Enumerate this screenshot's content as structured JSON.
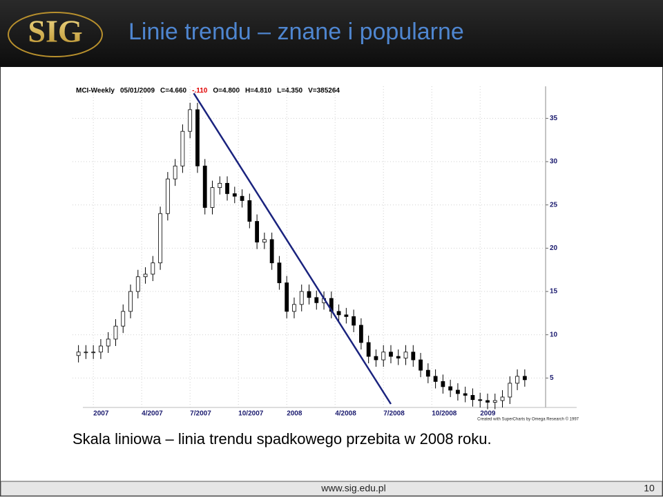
{
  "header": {
    "logo": "SIG",
    "title": "Linie trendu – znane i popularne"
  },
  "chart_data": {
    "type": "candlestick",
    "info": [
      {
        "text": "MCI-Weekly",
        "color": "#000000"
      },
      {
        "text": "05/01/2009",
        "color": "#000000"
      },
      {
        "text": "C=4.660",
        "color": "#000000"
      },
      {
        "text": "-.110",
        "color": "#e00000"
      },
      {
        "text": "O=4.800",
        "color": "#000000"
      },
      {
        "text": "H=4.810",
        "color": "#000000"
      },
      {
        "text": "L=4.350",
        "color": "#000000"
      },
      {
        "text": "V=385264",
        "color": "#000000"
      }
    ],
    "x": [
      -4,
      -2,
      0,
      2,
      4,
      6,
      8,
      10,
      12,
      14,
      16,
      18,
      20,
      22,
      24,
      26,
      28,
      30,
      32,
      34,
      36,
      38,
      40,
      42,
      44,
      46,
      48,
      50,
      52,
      54,
      56,
      58,
      60,
      62,
      64,
      66,
      68,
      70,
      72,
      74,
      76,
      78,
      80,
      82,
      84,
      86,
      88,
      90,
      92,
      94,
      96,
      98,
      100,
      102,
      104,
      106,
      108,
      110,
      112,
      114,
      116
    ],
    "open": [
      7.6,
      8,
      8,
      8,
      8.7,
      9.5,
      11,
      12.7,
      15,
      16.7,
      17,
      18.3,
      24,
      28,
      29.5,
      33.5,
      36,
      29.5,
      24.7,
      27,
      27.5,
      26.3,
      26,
      25.5,
      23.1,
      20.7,
      21,
      18.3,
      16,
      12.7,
      13.5,
      15,
      14.3,
      13.7,
      14.2,
      12.7,
      12.3,
      12.1,
      11.1,
      9.1,
      7.5,
      7.1,
      8,
      7.5,
      7.3,
      8,
      7.1,
      5.9,
      5.2,
      4.6,
      4.0,
      3.6,
      3.2,
      3.0,
      2.5,
      2.4,
      2.2,
      2.4,
      2.8,
      4.4,
      5.2
    ],
    "high": [
      8.8,
      8.8,
      8.8,
      9.5,
      10.3,
      11.8,
      13.5,
      15.8,
      17.5,
      17.8,
      19.1,
      24.8,
      28.8,
      30.3,
      34.3,
      36.8,
      36.8,
      30.3,
      27.8,
      28.3,
      28.3,
      27.1,
      26.8,
      26.3,
      23.9,
      21.8,
      21.8,
      19.1,
      16.8,
      14.3,
      15.8,
      15.8,
      15.1,
      15,
      15,
      13.5,
      13.1,
      12.9,
      11.9,
      9.9,
      8.3,
      8.8,
      8.8,
      8.3,
      8.8,
      8.8,
      7.9,
      6.7,
      6,
      5.4,
      4.8,
      4.4,
      4,
      3.8,
      3.3,
      3.2,
      3.2,
      3.6,
      5.2,
      6,
      6
    ],
    "low": [
      6.8,
      7.2,
      7.2,
      7.2,
      7.9,
      8.7,
      10.2,
      11.9,
      14.2,
      15.9,
      16.2,
      17.5,
      23.2,
      27.2,
      28.7,
      32.7,
      28.7,
      23.9,
      23.9,
      26.2,
      25.5,
      25.2,
      24.7,
      22.3,
      19.9,
      19.9,
      17.5,
      15.2,
      11.9,
      11.9,
      12.7,
      13.5,
      12.9,
      12.9,
      11.9,
      11.5,
      11.3,
      10.3,
      8.3,
      6.7,
      6.3,
      6.3,
      6.7,
      6.5,
      6.5,
      6.3,
      5.1,
      4.4,
      3.8,
      3.2,
      2.8,
      2.4,
      2.2,
      1.7,
      1.6,
      1.4,
      1.4,
      1.6,
      2,
      3.6,
      4
    ],
    "close": [
      8,
      8,
      8,
      8.7,
      9.5,
      11,
      12.7,
      15,
      16.7,
      17,
      18.3,
      24,
      28,
      29.5,
      33.5,
      36,
      29.5,
      24.7,
      27,
      27.5,
      26.3,
      26,
      25.5,
      23.1,
      20.7,
      21,
      18.3,
      16,
      12.7,
      13.5,
      15,
      14.3,
      13.7,
      14.2,
      12.7,
      12.3,
      12.1,
      11.1,
      9.1,
      7.5,
      7.1,
      8,
      7.5,
      7.3,
      8,
      7.1,
      5.9,
      5.2,
      4.6,
      4.0,
      3.6,
      3.2,
      3.0,
      2.5,
      2.4,
      2.2,
      2.4,
      2.8,
      4.4,
      5.2,
      4.8
    ],
    "up_color": "#ffffff",
    "down_color": "#000000",
    "trendline": {
      "x": [
        27,
        80
      ],
      "y": [
        37.9,
        2.0
      ],
      "color": "#1a237e"
    },
    "xlim": [
      -5.6,
      121.6
    ],
    "ylim": [
      1.6,
      38.7
    ],
    "xticks": [
      {
        "value": 0,
        "label": "2007"
      },
      {
        "value": 13,
        "label": "4/2007"
      },
      {
        "value": 26,
        "label": "7/2007"
      },
      {
        "value": 39,
        "label": "10/2007"
      },
      {
        "value": 52,
        "label": "2008"
      },
      {
        "value": 65,
        "label": "4/2008"
      },
      {
        "value": 78,
        "label": "7/2008"
      },
      {
        "value": 91,
        "label": "10/2008"
      },
      {
        "value": 104,
        "label": "2009"
      }
    ],
    "yticks": [
      5,
      10,
      15,
      20,
      25,
      30,
      35
    ],
    "grid": true,
    "credit": "Created with SuperCharts by Omega Research © 1997"
  },
  "caption": "Skala liniowa – linia trendu spadkowego przebita w 2008 roku.",
  "footer": {
    "url": "www.sig.edu.pl",
    "page": "10"
  }
}
